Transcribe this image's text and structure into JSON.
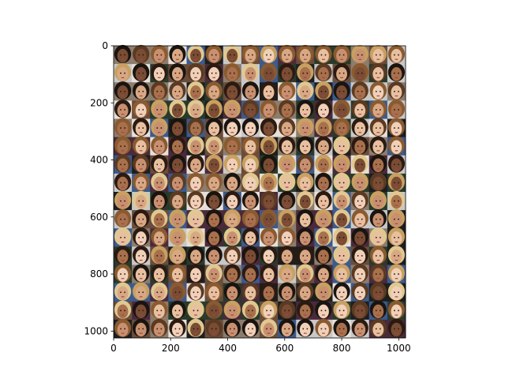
{
  "figure": {
    "image_description": "mosaic grid of face photographs",
    "grid": {
      "rows": 16,
      "cols": 16
    },
    "image_extent": {
      "width": 1024,
      "height": 1024
    }
  },
  "chart_data": {
    "type": "image",
    "title": "",
    "xlabel": "",
    "ylabel": "",
    "xlim": [
      0,
      1024
    ],
    "ylim": [
      1024,
      0
    ],
    "x_ticks": [
      0,
      200,
      400,
      600,
      800,
      1000
    ],
    "y_ticks": [
      0,
      200,
      400,
      600,
      800,
      1000
    ],
    "x_tick_labels": [
      "0",
      "200",
      "400",
      "600",
      "800",
      "1000"
    ],
    "y_tick_labels": [
      "0",
      "200",
      "400",
      "600",
      "800",
      "1000"
    ],
    "grid": false,
    "legend": null
  },
  "colors": {
    "axis": "#000000",
    "tile_palette": [
      "#5a3b2a",
      "#8a5a44",
      "#c89a7c",
      "#d9b296",
      "#3a2a22",
      "#a8744f",
      "#e0c0a0",
      "#6b4a3a",
      "#b88866",
      "#2d2420",
      "#7d5b4b",
      "#cfa383",
      "#9c6f55",
      "#f0d8c0",
      "#4e3a30",
      "#bfa08a"
    ],
    "tile_backgrounds": [
      "#1e1e1e",
      "#3c5a8c",
      "#c8c8c8",
      "#6a4c3a",
      "#2a3a2a",
      "#8c7c6c",
      "#e8e0d8",
      "#4a2a3a"
    ]
  }
}
